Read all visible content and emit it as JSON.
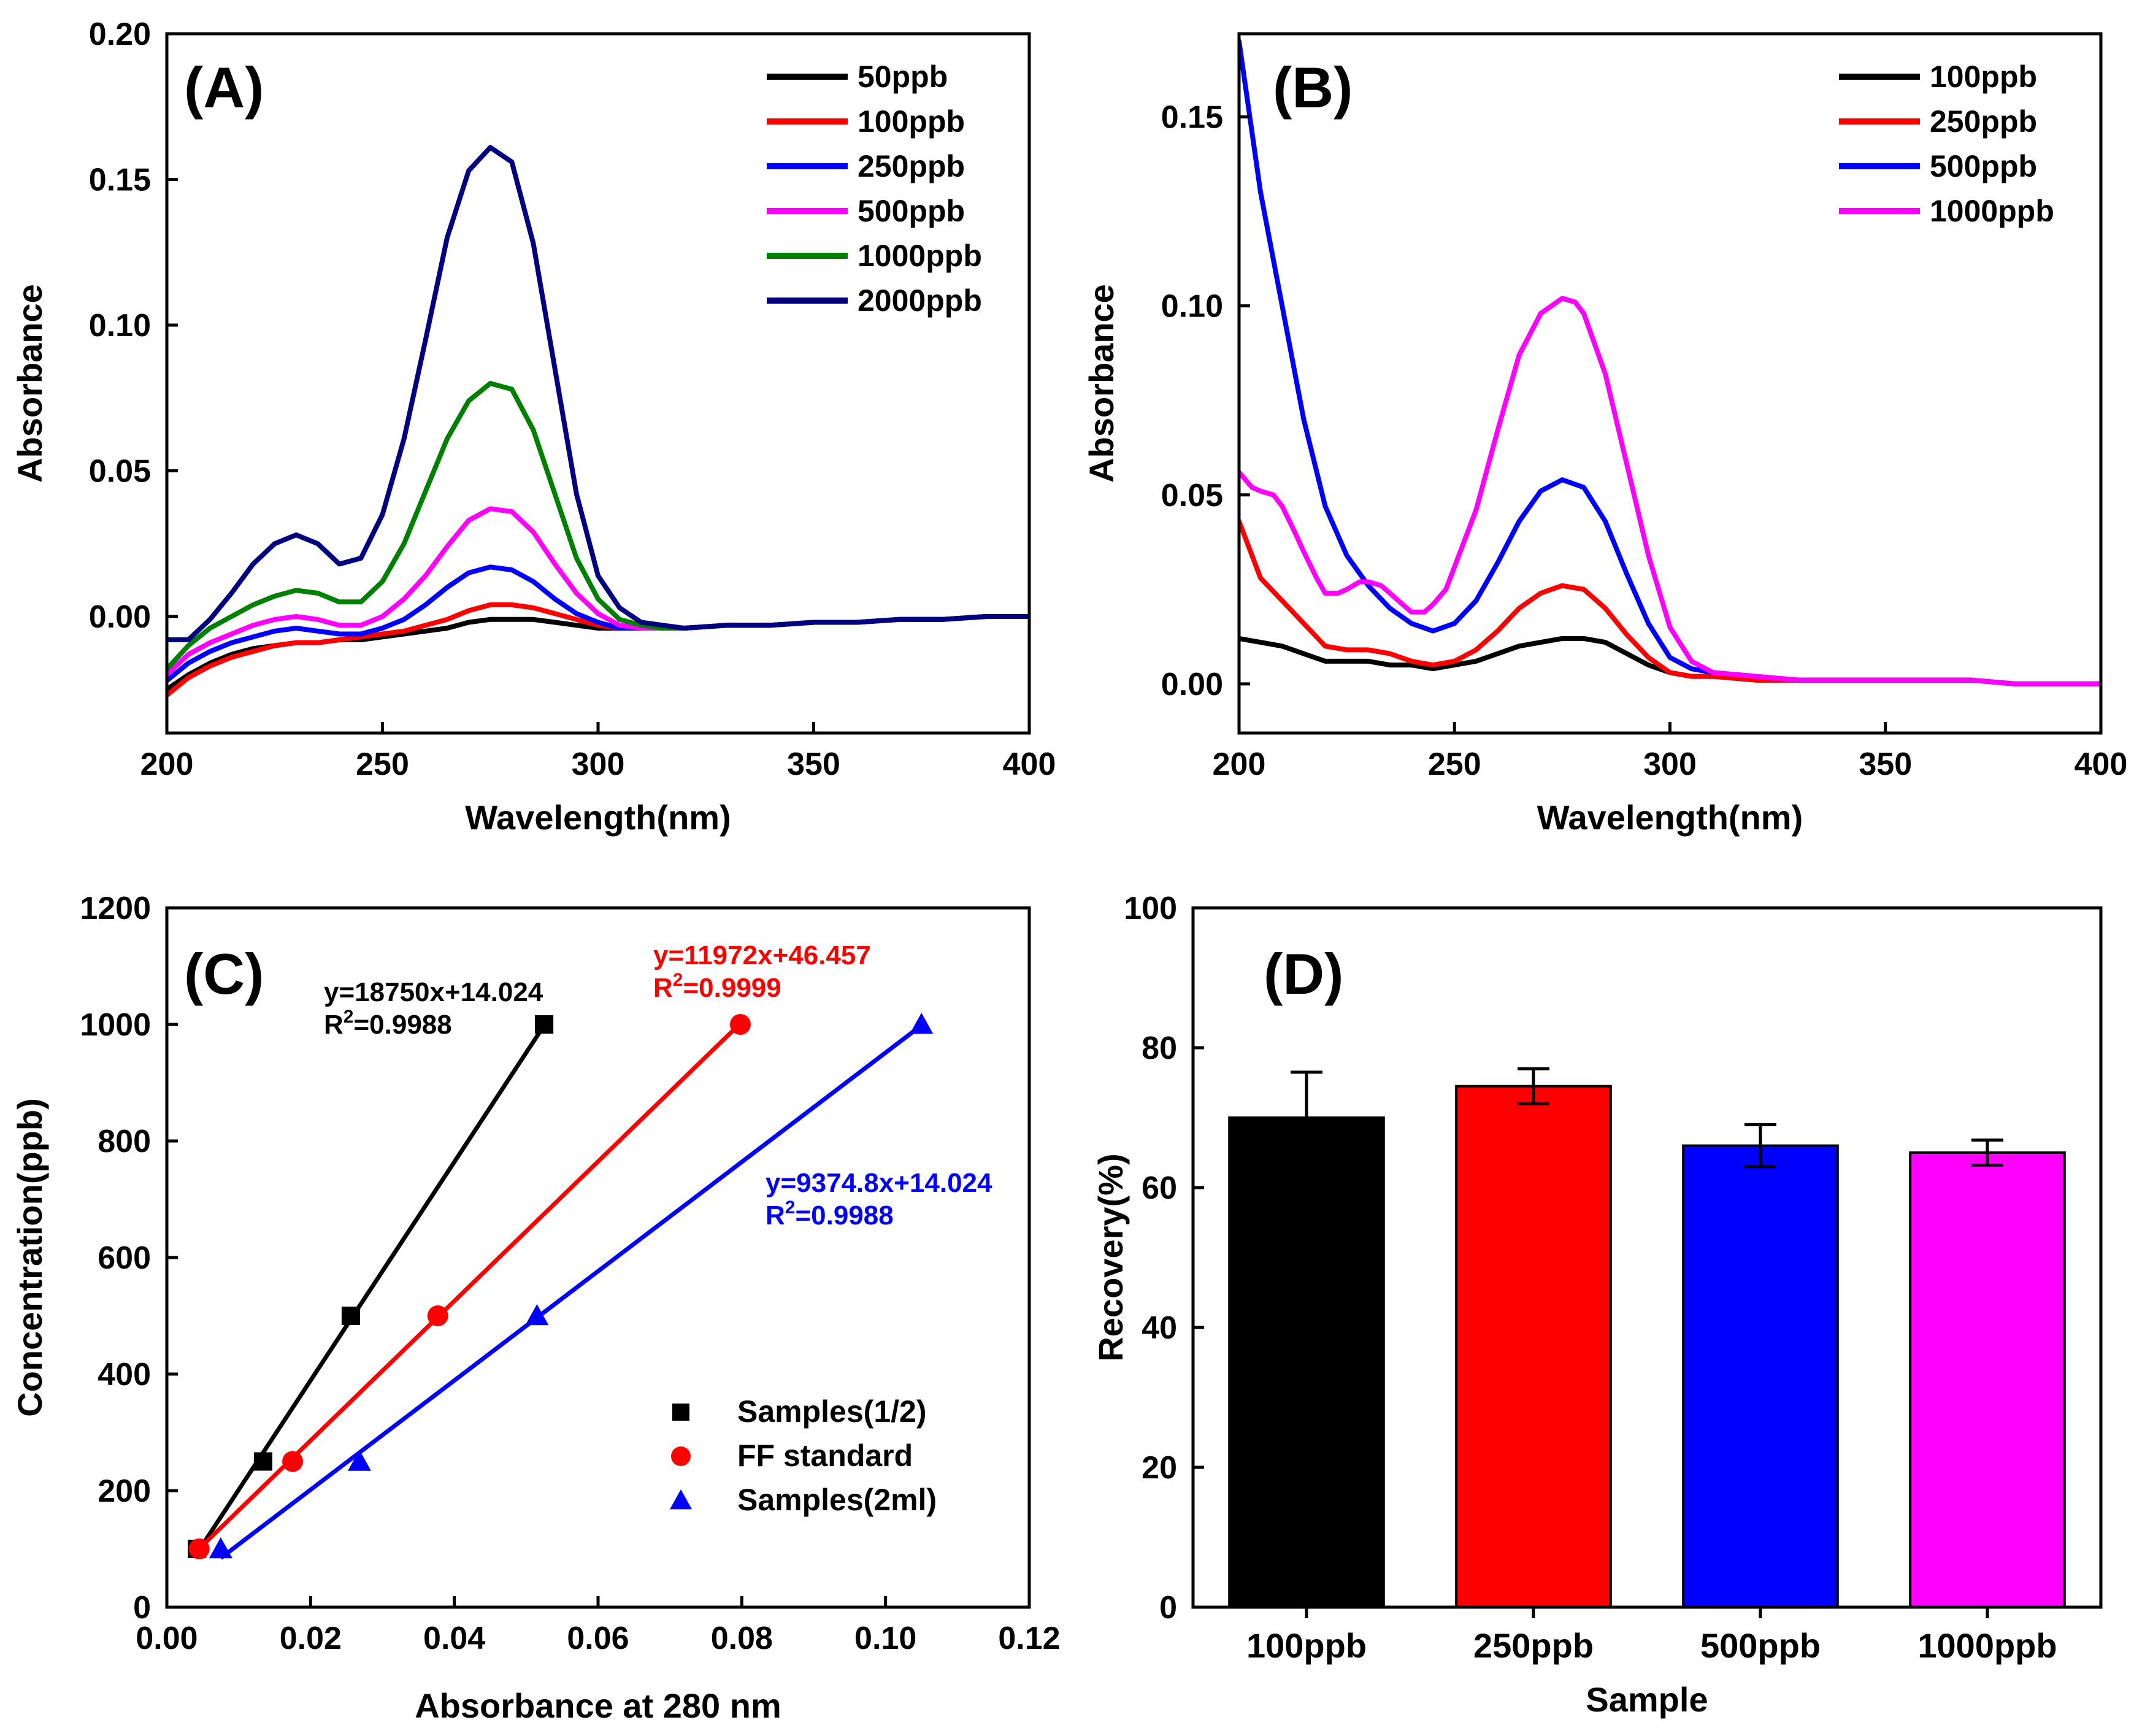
{
  "chart_data": [
    {
      "id": "A",
      "type": "line",
      "panel_label": "(A)",
      "xlabel": "Wavelength(nm)",
      "ylabel": "Absorbance",
      "xlim": [
        200,
        400
      ],
      "ylim": [
        -0.04,
        0.2
      ],
      "xticks": [
        200,
        250,
        300,
        350,
        400
      ],
      "yticks": [
        0.0,
        0.05,
        0.1,
        0.15,
        0.2
      ],
      "ytick_labels": [
        "0.00",
        "0.05",
        "0.10",
        "0.15",
        "0.20"
      ],
      "legend_position": "top-right",
      "series": [
        {
          "name": "50ppb",
          "color": "#000000",
          "x": [
            200,
            205,
            210,
            215,
            220,
            225,
            230,
            235,
            240,
            245,
            250,
            255,
            260,
            265,
            270,
            275,
            280,
            285,
            290,
            295,
            300,
            305,
            310,
            315,
            320,
            330,
            340,
            350,
            360,
            370,
            380,
            390,
            400
          ],
          "y": [
            -0.025,
            -0.02,
            -0.016,
            -0.013,
            -0.011,
            -0.01,
            -0.009,
            -0.009,
            -0.008,
            -0.008,
            -0.007,
            -0.006,
            -0.005,
            -0.004,
            -0.002,
            -0.001,
            -0.001,
            -0.001,
            -0.002,
            -0.003,
            -0.004,
            -0.004,
            -0.004,
            -0.004,
            -0.004,
            -0.003,
            -0.003,
            -0.002,
            -0.002,
            -0.001,
            -0.001,
            0.0,
            0.0
          ]
        },
        {
          "name": "100ppb",
          "color": "#ff0000",
          "x": [
            200,
            205,
            210,
            215,
            220,
            225,
            230,
            235,
            240,
            245,
            250,
            255,
            260,
            265,
            270,
            275,
            280,
            285,
            290,
            295,
            300,
            305,
            310,
            315,
            320,
            330,
            340,
            350,
            360,
            370,
            380,
            390,
            400
          ],
          "y": [
            -0.027,
            -0.021,
            -0.017,
            -0.014,
            -0.012,
            -0.01,
            -0.009,
            -0.009,
            -0.008,
            -0.007,
            -0.006,
            -0.005,
            -0.003,
            -0.001,
            0.002,
            0.004,
            0.004,
            0.003,
            0.001,
            -0.001,
            -0.003,
            -0.004,
            -0.004,
            -0.004,
            -0.004,
            -0.003,
            -0.003,
            -0.002,
            -0.002,
            -0.001,
            -0.001,
            0.0,
            0.0
          ]
        },
        {
          "name": "250ppb",
          "color": "#0000ff",
          "x": [
            200,
            205,
            210,
            215,
            220,
            225,
            230,
            235,
            240,
            245,
            250,
            255,
            260,
            265,
            270,
            275,
            280,
            285,
            290,
            295,
            300,
            305,
            310,
            315,
            320,
            330,
            340,
            350,
            360,
            370,
            380,
            390,
            400
          ],
          "y": [
            -0.022,
            -0.016,
            -0.012,
            -0.009,
            -0.007,
            -0.005,
            -0.004,
            -0.005,
            -0.006,
            -0.006,
            -0.004,
            -0.001,
            0.004,
            0.01,
            0.015,
            0.017,
            0.016,
            0.012,
            0.006,
            0.001,
            -0.002,
            -0.004,
            -0.004,
            -0.004,
            -0.004,
            -0.003,
            -0.003,
            -0.002,
            -0.002,
            -0.001,
            -0.001,
            0.0,
            0.0
          ]
        },
        {
          "name": "500ppb",
          "color": "#ff00ff",
          "x": [
            200,
            205,
            210,
            215,
            220,
            225,
            230,
            235,
            240,
            245,
            250,
            255,
            260,
            265,
            270,
            275,
            280,
            285,
            290,
            295,
            300,
            305,
            310,
            315,
            320,
            330,
            340,
            350,
            360,
            370,
            380,
            390,
            400
          ],
          "y": [
            -0.02,
            -0.013,
            -0.009,
            -0.006,
            -0.003,
            -0.001,
            0.0,
            -0.001,
            -0.003,
            -0.003,
            0.0,
            0.006,
            0.014,
            0.024,
            0.033,
            0.037,
            0.036,
            0.029,
            0.018,
            0.008,
            0.001,
            -0.003,
            -0.004,
            -0.004,
            -0.004,
            -0.003,
            -0.003,
            -0.002,
            -0.002,
            -0.001,
            -0.001,
            0.0,
            0.0
          ]
        },
        {
          "name": "1000ppb",
          "color": "#008000",
          "x": [
            200,
            205,
            210,
            215,
            220,
            225,
            230,
            235,
            240,
            245,
            250,
            255,
            260,
            265,
            270,
            275,
            280,
            285,
            290,
            295,
            300,
            305,
            310,
            315,
            320,
            330,
            340,
            350,
            360,
            370,
            380,
            390,
            400
          ],
          "y": [
            -0.018,
            -0.01,
            -0.004,
            0.0,
            0.004,
            0.007,
            0.009,
            0.008,
            0.005,
            0.005,
            0.012,
            0.025,
            0.043,
            0.061,
            0.074,
            0.08,
            0.078,
            0.064,
            0.042,
            0.02,
            0.006,
            -0.001,
            -0.003,
            -0.004,
            -0.004,
            -0.003,
            -0.003,
            -0.002,
            -0.002,
            -0.001,
            -0.001,
            0.0,
            0.0
          ]
        },
        {
          "name": "2000ppb",
          "color": "#000080",
          "x": [
            200,
            205,
            210,
            215,
            220,
            225,
            230,
            235,
            240,
            245,
            250,
            255,
            260,
            265,
            270,
            275,
            280,
            285,
            290,
            295,
            300,
            305,
            310,
            315,
            320,
            330,
            340,
            350,
            360,
            370,
            380,
            390,
            400
          ],
          "y": [
            -0.008,
            -0.008,
            -0.001,
            0.008,
            0.018,
            0.025,
            0.028,
            0.025,
            0.018,
            0.02,
            0.035,
            0.061,
            0.095,
            0.13,
            0.153,
            0.161,
            0.156,
            0.128,
            0.085,
            0.042,
            0.014,
            0.003,
            -0.002,
            -0.003,
            -0.004,
            -0.003,
            -0.003,
            -0.002,
            -0.002,
            -0.001,
            -0.001,
            0.0,
            0.0
          ]
        }
      ]
    },
    {
      "id": "B",
      "type": "line",
      "panel_label": "(B)",
      "xlabel": "Wavelength(nm)",
      "ylabel": "Absorbance",
      "xlim": [
        200,
        400
      ],
      "ylim": [
        -0.013,
        0.172
      ],
      "xticks": [
        200,
        250,
        300,
        350,
        400
      ],
      "yticks": [
        0.0,
        0.05,
        0.1,
        0.15
      ],
      "ytick_labels": [
        "0.00",
        "0.05",
        "0.10",
        "0.15"
      ],
      "legend_position": "top-right",
      "series": [
        {
          "name": "100ppb",
          "color": "#000000",
          "x": [
            200,
            205,
            210,
            215,
            220,
            225,
            230,
            235,
            240,
            245,
            250,
            255,
            260,
            265,
            270,
            275,
            280,
            285,
            290,
            295,
            300,
            305,
            310,
            320,
            330,
            340,
            350,
            360,
            370,
            380,
            390,
            400
          ],
          "y": [
            0.012,
            0.011,
            0.01,
            0.008,
            0.006,
            0.006,
            0.006,
            0.005,
            0.005,
            0.004,
            0.005,
            0.006,
            0.008,
            0.01,
            0.011,
            0.012,
            0.012,
            0.011,
            0.008,
            0.005,
            0.003,
            0.002,
            0.002,
            0.001,
            0.001,
            0.001,
            0.001,
            0.001,
            0.001,
            0.0,
            0.0,
            0.0
          ]
        },
        {
          "name": "250ppb",
          "color": "#ff0000",
          "x": [
            200,
            205,
            210,
            215,
            220,
            225,
            230,
            235,
            240,
            245,
            250,
            255,
            260,
            265,
            270,
            275,
            280,
            285,
            290,
            295,
            300,
            305,
            310,
            320,
            330,
            340,
            350,
            360,
            370,
            380,
            390,
            400
          ],
          "y": [
            0.043,
            0.028,
            0.022,
            0.016,
            0.01,
            0.009,
            0.009,
            0.008,
            0.006,
            0.005,
            0.006,
            0.009,
            0.014,
            0.02,
            0.024,
            0.026,
            0.025,
            0.02,
            0.013,
            0.007,
            0.003,
            0.002,
            0.002,
            0.001,
            0.001,
            0.001,
            0.001,
            0.001,
            0.001,
            0.0,
            0.0,
            0.0
          ]
        },
        {
          "name": "500ppb",
          "color": "#0000ff",
          "x": [
            200,
            205,
            210,
            215,
            220,
            225,
            230,
            235,
            240,
            245,
            250,
            255,
            260,
            265,
            270,
            275,
            280,
            285,
            290,
            295,
            300,
            305,
            310,
            320,
            330,
            340,
            350,
            360,
            370,
            380,
            390,
            400
          ],
          "y": [
            0.17,
            0.13,
            0.1,
            0.07,
            0.047,
            0.034,
            0.026,
            0.02,
            0.016,
            0.014,
            0.016,
            0.022,
            0.032,
            0.043,
            0.051,
            0.054,
            0.052,
            0.043,
            0.029,
            0.016,
            0.007,
            0.004,
            0.003,
            0.002,
            0.001,
            0.001,
            0.001,
            0.001,
            0.001,
            0.0,
            0.0,
            0.0
          ]
        },
        {
          "name": "1000ppb",
          "color": "#ff00ff",
          "x": [
            200,
            203,
            205,
            208,
            210,
            213,
            215,
            218,
            220,
            223,
            225,
            228,
            230,
            233,
            235,
            238,
            240,
            243,
            245,
            248,
            250,
            255,
            260,
            265,
            270,
            275,
            278,
            280,
            285,
            290,
            295,
            300,
            305,
            310,
            320,
            330,
            340,
            350,
            360,
            370,
            380,
            390,
            400
          ],
          "y": [
            0.056,
            0.052,
            0.051,
            0.05,
            0.047,
            0.04,
            0.035,
            0.028,
            0.024,
            0.024,
            0.025,
            0.027,
            0.027,
            0.026,
            0.024,
            0.021,
            0.019,
            0.019,
            0.021,
            0.025,
            0.031,
            0.046,
            0.067,
            0.087,
            0.098,
            0.102,
            0.101,
            0.098,
            0.082,
            0.058,
            0.034,
            0.015,
            0.006,
            0.003,
            0.002,
            0.001,
            0.001,
            0.001,
            0.001,
            0.001,
            0.0,
            0.0,
            0.0
          ]
        }
      ]
    },
    {
      "id": "C",
      "type": "scatter",
      "panel_label": "(C)",
      "xlabel": "Absorbance at 280 nm",
      "ylabel": "Concentration(ppb)",
      "xlim": [
        0.0,
        0.12
      ],
      "ylim": [
        0,
        1200
      ],
      "xticks": [
        0.0,
        0.02,
        0.04,
        0.06,
        0.08,
        0.1,
        0.12
      ],
      "xtick_labels": [
        "0.00",
        "0.02",
        "0.04",
        "0.06",
        "0.08",
        "0.10",
        "0.12"
      ],
      "yticks": [
        0,
        200,
        400,
        600,
        800,
        1000,
        1200
      ],
      "ytick_labels": [
        "0",
        "200",
        "400",
        "600",
        "800",
        "1000",
        "1200"
      ],
      "legend_position": "bottom-right",
      "series": [
        {
          "name": "Samples(1/2)",
          "color": "#000000",
          "marker": "square",
          "x": [
            0.0042,
            0.0134,
            0.0256,
            0.0525
          ],
          "y": [
            100,
            250,
            500,
            1000
          ],
          "fit": {
            "slope": 18750,
            "intercept": 14.024,
            "equation": "y=18750x+14.024",
            "r2_prefix": "R",
            "r2_suffix": "=0.9988",
            "x_range": [
              0.0046,
              0.0526
            ]
          }
        },
        {
          "name": "FF standard",
          "color": "#ff0000",
          "marker": "circle",
          "x": [
            0.0045,
            0.0175,
            0.0377,
            0.0798
          ],
          "y": [
            100,
            250,
            500,
            1000
          ],
          "fit": {
            "slope": 11972,
            "intercept": 46.457,
            "equation": "y=11972x+46.457",
            "r2_prefix": "R",
            "r2_suffix": "=0.9999",
            "x_range": [
              0.0046,
              0.0798
            ]
          }
        },
        {
          "name": "Samples(2ml)",
          "color": "#0000ff",
          "marker": "triangle",
          "x": [
            0.0075,
            0.0268,
            0.0515,
            0.105
          ],
          "y": [
            100,
            250,
            500,
            1000
          ],
          "fit": {
            "slope": 9374.8,
            "intercept": 14.024,
            "equation": "y=9374.8x+14.024",
            "r2_prefix": "R",
            "r2_suffix": "=0.9988",
            "x_range": [
              0.0075,
              0.105
            ]
          }
        }
      ]
    },
    {
      "id": "D",
      "type": "bar",
      "panel_label": "(D)",
      "xlabel": "Sample",
      "ylabel": "Recovery(%)",
      "ylim": [
        0,
        100
      ],
      "yticks": [
        0,
        20,
        40,
        60,
        80,
        100
      ],
      "ytick_labels": [
        "0",
        "20",
        "40",
        "60",
        "80",
        "100"
      ],
      "categories": [
        "100ppb",
        "250ppb",
        "500ppb",
        "1000ppb"
      ],
      "values": [
        70.0,
        74.5,
        66.0,
        65.0
      ],
      "errors": [
        6.5,
        2.5,
        3.0,
        1.8
      ],
      "colors": [
        "#000000",
        "#ff0000",
        "#0000ff",
        "#ff00ff"
      ]
    }
  ]
}
